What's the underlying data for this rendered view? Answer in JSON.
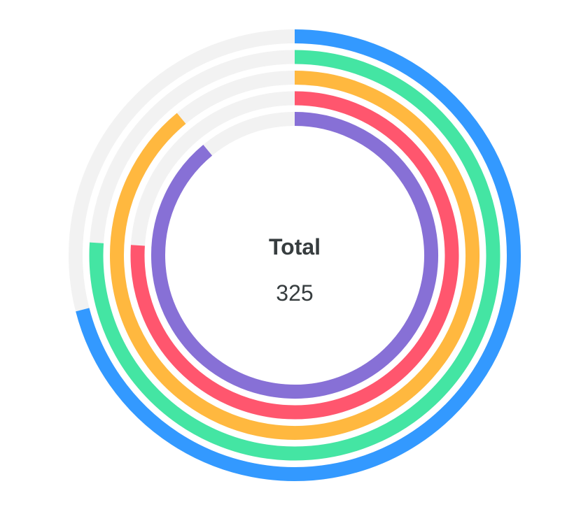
{
  "chart_data": {
    "type": "radialBar",
    "total_label": "Total",
    "total_value": "325",
    "series": [
      {
        "value": 71,
        "color": "#3399FF"
      },
      {
        "value": 76,
        "color": "#44E5A3"
      },
      {
        "value": 89,
        "color": "#FFB83F"
      },
      {
        "value": 76,
        "color": "#FF566E"
      },
      {
        "value": 89,
        "color": "#8770D6"
      }
    ],
    "track_color": "#F2F2F2",
    "legend": "none",
    "grid": false
  }
}
